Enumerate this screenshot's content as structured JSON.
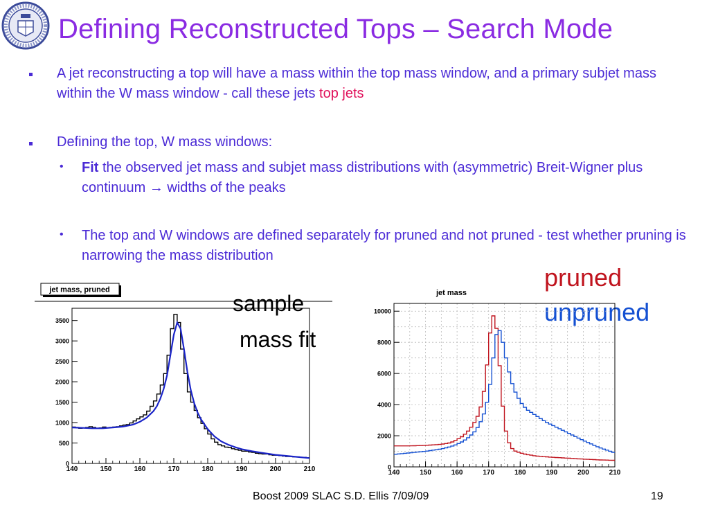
{
  "slide": {
    "title": "Defining Reconstructed Tops – Search Mode",
    "bullet1_text": "A jet reconstructing a top will have a mass within the top mass window, and a primary subjet mass within the W mass window - call these jets ",
    "bullet1_highlight": "top jets",
    "bullet2": "Defining the top, W mass windows:",
    "sub1_bold": "Fit",
    "sub1_rest": " the observed jet mass and subjet mass distributions with (asymmetric) Breit-Wigner plus continuum → widths of the peaks",
    "sub2": "The top and W windows are defined separately for pruned and not pruned - test whether pruning is narrowing the mass distribution",
    "label_pruned": "pruned",
    "label_unpruned": "unpruned",
    "sample_line1": "sample",
    "sample_line2": "mass fit",
    "footer_left": "Boost 2009  SLAC     S.D. Ellis    7/09/09",
    "page_number": "19",
    "colors": {
      "title": "#8a2be2",
      "text": "#4b2bd6",
      "highlight": "#e0105a",
      "pruned": "#c0141e",
      "unpruned": "#1450d2"
    }
  },
  "chart_data": [
    {
      "type": "histogram",
      "title": "jet mass, pruned",
      "xlim": [
        140,
        210
      ],
      "ylim": [
        0,
        3800
      ],
      "xticks": [
        140,
        150,
        160,
        170,
        180,
        190,
        200,
        210
      ],
      "yticks": [
        0,
        500,
        1000,
        1500,
        2000,
        2500,
        3000,
        3500
      ],
      "series": [
        {
          "kind": "data",
          "color": "#000000",
          "x": [
            140.5,
            141.5,
            142.5,
            143.5,
            144.5,
            145.5,
            146.5,
            147.5,
            148.5,
            149.5,
            150.5,
            151.5,
            152.5,
            153.5,
            154.5,
            155.5,
            156.5,
            157.5,
            158.5,
            159.5,
            160.5,
            161.5,
            162.5,
            163.5,
            164.5,
            165.5,
            166.5,
            167.5,
            168.5,
            169.5,
            170.5,
            171.5,
            172.5,
            173.5,
            174.5,
            175.5,
            176.5,
            177.5,
            178.5,
            179.5,
            180.5,
            181.5,
            182.5,
            183.5,
            184.5,
            185.5,
            186.5,
            187.5,
            188.5,
            189.5,
            190.5,
            191.5,
            192.5,
            193.5,
            194.5,
            195.5,
            196.5,
            197.5,
            198.5,
            199.5,
            200.5,
            201.5,
            202.5,
            203.5,
            204.5,
            205.5,
            206.5,
            207.5,
            208.5,
            209.5
          ],
          "y": [
            890,
            880,
            860,
            870,
            880,
            900,
            880,
            860,
            870,
            890,
            870,
            880,
            890,
            900,
            920,
            940,
            950,
            990,
            1040,
            1090,
            1140,
            1190,
            1280,
            1400,
            1530,
            1700,
            1920,
            2200,
            2650,
            3300,
            3650,
            3450,
            2800,
            2200,
            1750,
            1500,
            1300,
            1120,
            980,
            850,
            720,
            600,
            520,
            460,
            430,
            400,
            390,
            360,
            340,
            320,
            300,
            300,
            280,
            270,
            250,
            240,
            230,
            230,
            210,
            200,
            200,
            190,
            180,
            170,
            170,
            160,
            160,
            150,
            150,
            140
          ]
        },
        {
          "kind": "fit",
          "color": "#1a24c8",
          "x": [
            140,
            143,
            146,
            149,
            152,
            155,
            158,
            160,
            162,
            164,
            165,
            166,
            167,
            168,
            169,
            170,
            171,
            172,
            173,
            174,
            175,
            176,
            177,
            178,
            180,
            182,
            184,
            186,
            188,
            190,
            193,
            196,
            200,
            205,
            210
          ],
          "y": [
            880,
            870,
            860,
            860,
            880,
            900,
            950,
            1020,
            1120,
            1280,
            1400,
            1580,
            1820,
            2150,
            2650,
            3150,
            3450,
            3300,
            2800,
            2250,
            1800,
            1480,
            1250,
            1080,
            840,
            660,
            540,
            460,
            400,
            350,
            300,
            260,
            210,
            170,
            130
          ]
        }
      ]
    },
    {
      "type": "histogram",
      "title": "jet mass",
      "xlim": [
        140,
        210
      ],
      "ylim": [
        0,
        10500
      ],
      "xticks": [
        140,
        150,
        160,
        170,
        180,
        190,
        200,
        210
      ],
      "yticks": [
        0,
        2000,
        4000,
        6000,
        8000,
        10000
      ],
      "series": [
        {
          "name": "pruned",
          "color": "#c0141e",
          "x": [
            140,
            145,
            150,
            155,
            158,
            160,
            162,
            164,
            166,
            167,
            168,
            169,
            170,
            171,
            172,
            173,
            174,
            175,
            176,
            177,
            178,
            180,
            182,
            185,
            190,
            195,
            200,
            205,
            210
          ],
          "y": [
            1350,
            1350,
            1380,
            1450,
            1550,
            1750,
            2000,
            2400,
            3000,
            3500,
            4200,
            5500,
            7600,
            9600,
            9800,
            8000,
            5000,
            2800,
            1800,
            1300,
            1050,
            900,
            800,
            700,
            620,
            560,
            500,
            450,
            420
          ]
        },
        {
          "name": "unpruned",
          "color": "#1450d2",
          "x": [
            140,
            145,
            150,
            155,
            158,
            160,
            162,
            164,
            166,
            167,
            168,
            169,
            170,
            171,
            172,
            173,
            174,
            175,
            176,
            177,
            178,
            180,
            182,
            185,
            188,
            190,
            193,
            196,
            200,
            205,
            210
          ],
          "y": [
            800,
            900,
            1000,
            1150,
            1300,
            1450,
            1650,
            1950,
            2350,
            2700,
            3100,
            3700,
            4600,
            6000,
            8000,
            9000,
            8500,
            7500,
            6500,
            5700,
            5000,
            4200,
            3700,
            3300,
            2900,
            2700,
            2400,
            2100,
            1700,
            1250,
            900
          ]
        }
      ]
    }
  ]
}
